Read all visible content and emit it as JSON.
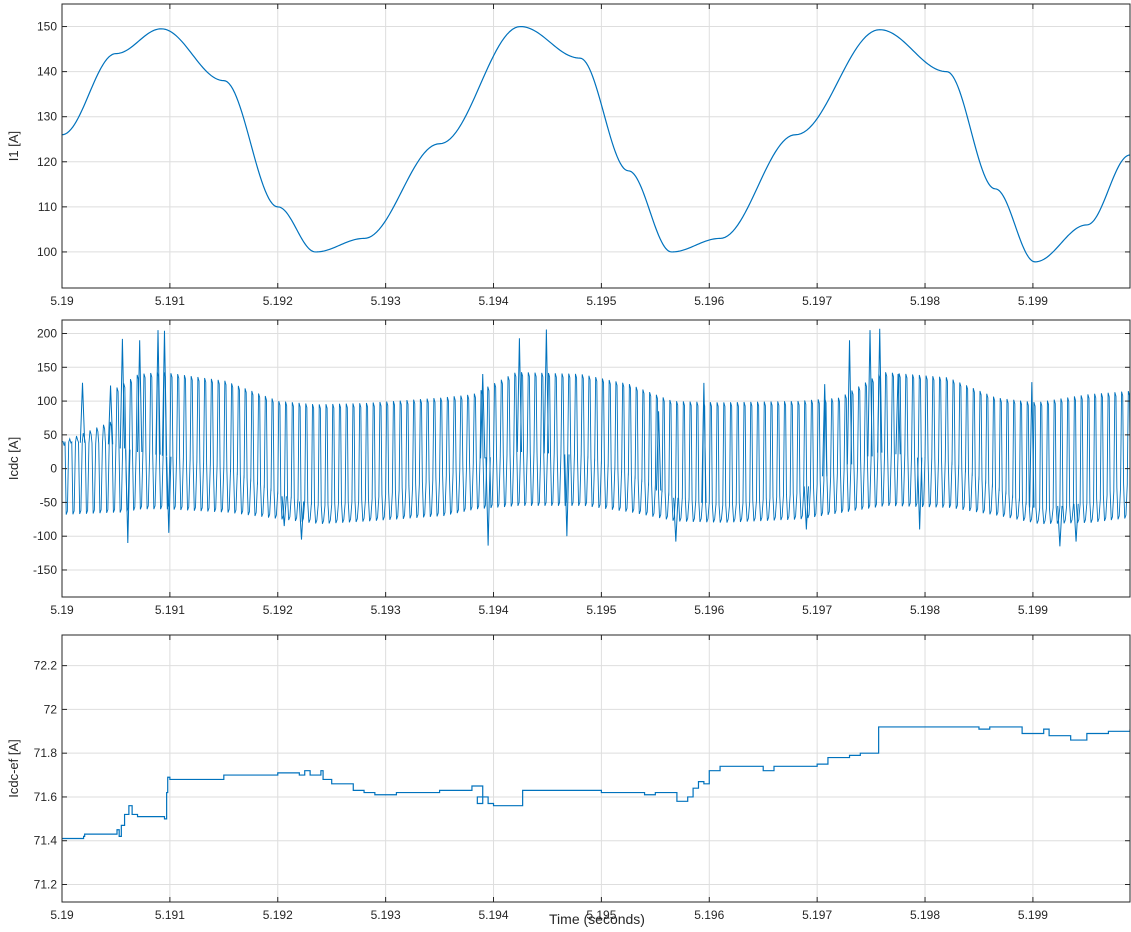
{
  "figure": {
    "xlabel": "Time (seconds)"
  },
  "colors": {
    "line": "#0072BD",
    "grid": "#dedede",
    "axes": "#262626",
    "background": "#ffffff"
  },
  "chart_data": [
    {
      "type": "line",
      "ylabel": "I1 [A]",
      "xlim": [
        5.19,
        5.1999
      ],
      "ylim": [
        92,
        155
      ],
      "xticks": [
        5.19,
        5.191,
        5.192,
        5.193,
        5.194,
        5.195,
        5.196,
        5.197,
        5.198,
        5.199
      ],
      "xtick_labels": [
        "5.19",
        "5.191",
        "5.192",
        "5.193",
        "5.194",
        "5.195",
        "5.196",
        "5.197",
        "5.198",
        "5.199"
      ],
      "yticks": [
        100,
        110,
        120,
        130,
        140,
        150
      ],
      "ytick_labels": [
        "100",
        "110",
        "120",
        "130",
        "140",
        "150"
      ],
      "grid": true,
      "series": [
        {
          "x": [
            5.19,
            5.1905,
            5.19092,
            5.1915,
            5.192,
            5.19235,
            5.1928,
            5.1935,
            5.19425,
            5.1948,
            5.19525,
            5.19565,
            5.1961,
            5.1968,
            5.19758,
            5.1982,
            5.19865,
            5.19902,
            5.1995,
            5.1999
          ],
          "y": [
            126,
            144,
            149.5,
            138,
            110,
            100,
            103,
            124,
            150,
            143,
            118,
            100,
            103,
            126,
            149.3,
            140,
            114,
            97.8,
            106,
            121.5
          ]
        }
      ]
    },
    {
      "type": "line",
      "ylabel": "Icdc [A]",
      "xlim": [
        5.19,
        5.1999
      ],
      "ylim": [
        -190,
        220
      ],
      "xticks": [
        5.19,
        5.191,
        5.192,
        5.193,
        5.194,
        5.195,
        5.196,
        5.197,
        5.198,
        5.199
      ],
      "xtick_labels": [
        "5.19",
        "5.191",
        "5.192",
        "5.193",
        "5.194",
        "5.195",
        "5.196",
        "5.197",
        "5.198",
        "5.199"
      ],
      "yticks": [
        -150,
        -100,
        -50,
        0,
        50,
        100,
        150,
        200
      ],
      "ytick_labels": [
        "-150",
        "-100",
        "-50",
        "0",
        "50",
        "100",
        "150",
        "200"
      ],
      "grid": true,
      "series": [
        {
          "envelope": {
            "switching_frequency_khz": 16,
            "x": [
              5.19,
              5.19045,
              5.1905,
              5.1907,
              5.19092,
              5.1915,
              5.192,
              5.19235,
              5.1928,
              5.1935,
              5.1938,
              5.1942,
              5.1948,
              5.19525,
              5.19565,
              5.1961,
              5.1968,
              5.1972,
              5.1976,
              5.1982,
              5.19865,
              5.19902,
              5.1995,
              5.1999
            ],
            "baseline": [
              40,
              36,
              32,
              25,
              20,
              0,
              -38,
              -55,
              -45,
              -10,
              12,
              25,
              20,
              -10,
              -42,
              -55,
              -35,
              0,
              25,
              10,
              -30,
              -60,
              -50,
              -15
            ],
            "upper": [
              40,
              70,
              120,
              140,
              143,
              130,
              100,
              95,
              97,
              105,
              110,
              143,
              140,
              125,
              100,
              98,
              100,
              105,
              143,
              135,
              105,
              98,
              110,
              115
            ],
            "lower": [
              -68,
              -65,
              -65,
              -60,
              -60,
              -65,
              -75,
              -82,
              -78,
              -70,
              -60,
              -55,
              -55,
              -65,
              -78,
              -80,
              -75,
              -65,
              -55,
              -58,
              -70,
              -82,
              -80,
              -72
            ]
          },
          "spikes": [
            {
              "x": 5.19019,
              "y": 127
            },
            {
              "x": 5.19045,
              "y": 123
            },
            {
              "x": 5.19056,
              "y": 192
            },
            {
              "x": 5.19061,
              "y": -110
            },
            {
              "x": 5.19072,
              "y": 190
            },
            {
              "x": 5.19089,
              "y": 205
            },
            {
              "x": 5.19095,
              "y": 204
            },
            {
              "x": 5.19099,
              "y": -95
            },
            {
              "x": 5.19206,
              "y": -85
            },
            {
              "x": 5.19222,
              "y": -105
            },
            {
              "x": 5.1939,
              "y": 140
            },
            {
              "x": 5.19395,
              "y": -114
            },
            {
              "x": 5.19424,
              "y": 193
            },
            {
              "x": 5.19449,
              "y": 206
            },
            {
              "x": 5.19468,
              "y": -100
            },
            {
              "x": 5.19553,
              "y": 85
            },
            {
              "x": 5.19569,
              "y": -108
            },
            {
              "x": 5.19595,
              "y": 127
            },
            {
              "x": 5.1969,
              "y": -90
            },
            {
              "x": 5.19707,
              "y": 125
            },
            {
              "x": 5.1973,
              "y": 190
            },
            {
              "x": 5.19749,
              "y": 205
            },
            {
              "x": 5.19758,
              "y": 207
            },
            {
              "x": 5.19775,
              "y": 140
            },
            {
              "x": 5.19795,
              "y": -90
            },
            {
              "x": 5.19899,
              "y": 128
            },
            {
              "x": 5.19925,
              "y": -115
            },
            {
              "x": 5.1994,
              "y": -108
            }
          ]
        }
      ]
    },
    {
      "type": "line",
      "ylabel": "Icdc-ef [A]",
      "xlim": [
        5.19,
        5.1999
      ],
      "ylim": [
        71.12,
        72.34
      ],
      "xticks": [
        5.19,
        5.191,
        5.192,
        5.193,
        5.194,
        5.195,
        5.196,
        5.197,
        5.198,
        5.199
      ],
      "xtick_labels": [
        "5.19",
        "5.191",
        "5.192",
        "5.193",
        "5.194",
        "5.195",
        "5.196",
        "5.197",
        "5.198",
        "5.199"
      ],
      "yticks": [
        71.2,
        71.4,
        71.6,
        71.8,
        72,
        72.2
      ],
      "ytick_labels": [
        "71.2",
        "71.4",
        "71.6",
        "71.8",
        "72",
        "72.2"
      ],
      "grid": true,
      "series": [
        {
          "x": [
            5.19,
            5.1902,
            5.19021,
            5.1905,
            5.19051,
            5.19053,
            5.19055,
            5.19058,
            5.19062,
            5.19065,
            5.1907,
            5.19095,
            5.19097,
            5.19098,
            5.191,
            5.1915,
            5.192,
            5.1922,
            5.19225,
            5.1923,
            5.1924,
            5.19242,
            5.1925,
            5.1927,
            5.1928,
            5.1929,
            5.1931,
            5.1932,
            5.1935,
            5.1938,
            5.1939,
            5.19385,
            5.1939,
            5.19395,
            5.194,
            5.19425,
            5.19427,
            5.195,
            5.1954,
            5.1955,
            5.1957,
            5.1958,
            5.19585,
            5.1959,
            5.19595,
            5.196,
            5.1961,
            5.1965,
            5.1966,
            5.197,
            5.1971,
            5.1973,
            5.1974,
            5.19755,
            5.19757,
            5.1982,
            5.1985,
            5.1986,
            5.1989,
            5.1991,
            5.19915,
            5.1993,
            5.19935,
            5.1995,
            5.1997,
            5.1999
          ],
          "y": [
            71.41,
            71.42,
            71.43,
            71.43,
            71.45,
            71.42,
            71.47,
            71.52,
            71.56,
            71.52,
            71.51,
            71.5,
            71.62,
            71.69,
            71.68,
            71.7,
            71.71,
            71.7,
            71.72,
            71.7,
            71.72,
            71.68,
            71.66,
            71.63,
            71.62,
            71.61,
            71.62,
            71.62,
            71.63,
            71.65,
            71.6,
            71.57,
            71.6,
            71.57,
            71.56,
            71.56,
            71.63,
            71.62,
            71.61,
            71.62,
            71.58,
            71.6,
            71.64,
            71.67,
            71.66,
            71.72,
            71.74,
            71.72,
            71.74,
            71.75,
            71.78,
            71.79,
            71.8,
            71.8,
            71.92,
            71.92,
            71.91,
            71.92,
            71.89,
            71.91,
            71.88,
            71.88,
            71.86,
            71.89,
            71.9,
            71.91
          ]
        }
      ]
    }
  ]
}
